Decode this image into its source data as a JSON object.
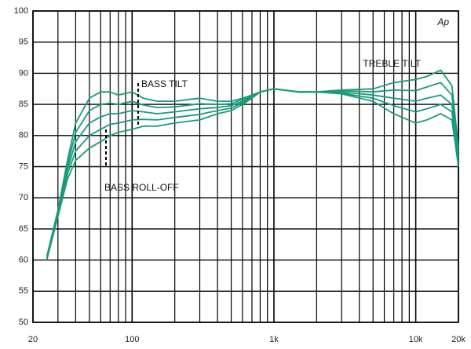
{
  "chart_data": {
    "type": "line",
    "logx": true,
    "color": "#1a9a7c",
    "x": [
      25,
      30,
      35,
      40,
      50,
      60,
      70,
      80,
      100,
      120,
      150,
      200,
      300,
      400,
      500,
      600,
      700,
      800,
      1000,
      1500,
      2000,
      3000,
      5000,
      7000,
      10000,
      12000,
      15000,
      18000,
      20000
    ],
    "series": [
      {
        "color": "#1a9a7c",
        "values": [
          60.5,
          68,
          76,
          82,
          86,
          87,
          87,
          86.5,
          87,
          86,
          85.5,
          85.5,
          86,
          85.5,
          85.5,
          86,
          86.5,
          87,
          87.5,
          87,
          87,
          87.3,
          87.5,
          88.5,
          89,
          89.5,
          90.5,
          88,
          78
        ]
      },
      {
        "color": "#1a9a7c",
        "values": [
          60,
          67.8,
          75.2,
          80.5,
          84,
          85,
          85.2,
          85,
          85.5,
          84.9,
          84.5,
          84.6,
          85.1,
          85,
          85.1,
          85.8,
          86.4,
          87,
          87.5,
          87,
          87,
          87.2,
          87,
          87.3,
          87.2,
          87.8,
          88.5,
          86.5,
          77.3
        ]
      },
      {
        "color": "#1a9a7c",
        "values": [
          60,
          67.5,
          74.5,
          79,
          82,
          83,
          83.5,
          83.5,
          84,
          83.8,
          83.5,
          83.8,
          84.3,
          84.5,
          84.8,
          85.5,
          86.3,
          87,
          87.5,
          87,
          87,
          87,
          86.5,
          86,
          85.5,
          86,
          86.5,
          85,
          76.5
        ]
      },
      {
        "color": "#1a9a7c",
        "values": [
          60,
          67.3,
          73.8,
          77.5,
          80,
          81,
          81.8,
          82,
          82.5,
          82.6,
          82.5,
          82.9,
          83.4,
          84,
          84.4,
          85.3,
          86.1,
          87,
          87.5,
          87,
          87,
          86.8,
          86,
          84.8,
          83.8,
          84.3,
          85,
          83.8,
          75.8
        ]
      },
      {
        "color": "#1a9a7c",
        "values": [
          60,
          67,
          73,
          76,
          78,
          79,
          80,
          80.5,
          81,
          81.5,
          81.5,
          82,
          82.5,
          83.5,
          84,
          85,
          86,
          87,
          87.5,
          87,
          87,
          86.7,
          85.5,
          83.5,
          82,
          82.5,
          83.5,
          82.5,
          75
        ]
      }
    ],
    "xlim": [
      20,
      20000
    ],
    "ylim": [
      50,
      100
    ],
    "xticks": [
      20,
      100,
      {
        "value": 1000,
        "label": "1k"
      },
      {
        "value": 10000,
        "label": "10k"
      },
      {
        "value": 20000,
        "label": "20k"
      }
    ],
    "xminor": [
      30,
      40,
      50,
      60,
      70,
      80,
      90,
      200,
      300,
      400,
      500,
      600,
      700,
      800,
      900,
      2000,
      3000,
      4000,
      5000,
      6000,
      7000,
      8000,
      9000
    ],
    "yticks": [
      50,
      55,
      60,
      65,
      70,
      75,
      80,
      85,
      90,
      95,
      100
    ],
    "grid": true,
    "annotations": [
      "BASS TILT",
      "BASS ROLL-OFF",
      "TREBLE TILT"
    ],
    "logo": "Ap"
  }
}
